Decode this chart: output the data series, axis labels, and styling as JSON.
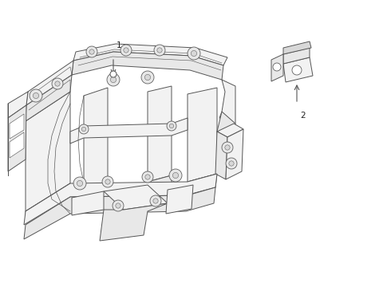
{
  "background_color": "#ffffff",
  "line_color": "#555555",
  "line_width": 0.7,
  "label1_text": "1",
  "label2_text": "2",
  "figsize": [
    4.9,
    3.6
  ],
  "dpi": 100,
  "fill_light": "#f2f2f2",
  "fill_mid": "#e8e8e8",
  "fill_dark": "#d8d8d8",
  "fill_white": "#ffffff"
}
